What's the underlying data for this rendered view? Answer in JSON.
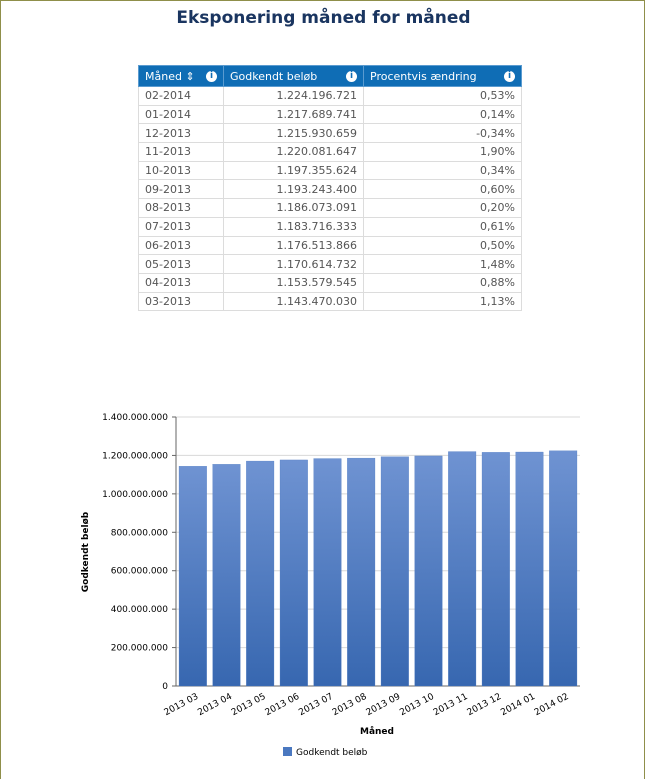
{
  "header": {
    "title": "Eksponering måned for måned"
  },
  "table": {
    "columns": [
      "Måned",
      "Godkendt beløb",
      "Procentvis ændring"
    ],
    "rows": [
      [
        "02-2014",
        "1.224.196.721",
        "0,53%"
      ],
      [
        "01-2014",
        "1.217.689.741",
        "0,14%"
      ],
      [
        "12-2013",
        "1.215.930.659",
        "-0,34%"
      ],
      [
        "11-2013",
        "1.220.081.647",
        "1,90%"
      ],
      [
        "10-2013",
        "1.197.355.624",
        "0,34%"
      ],
      [
        "09-2013",
        "1.193.243.400",
        "0,60%"
      ],
      [
        "08-2013",
        "1.186.073.091",
        "0,20%"
      ],
      [
        "07-2013",
        "1.183.716.333",
        "0,61%"
      ],
      [
        "06-2013",
        "1.176.513.866",
        "0,50%"
      ],
      [
        "05-2013",
        "1.170.614.732",
        "1,48%"
      ],
      [
        "04-2013",
        "1.153.579.545",
        "0,88%"
      ],
      [
        "03-2013",
        "1.143.470.030",
        "1,13%"
      ]
    ]
  },
  "chart_data": {
    "type": "bar",
    "x_label": "Måned",
    "y_label": "Godkendt beløb",
    "categories": [
      "2013 03",
      "2013 04",
      "2013 05",
      "2013 06",
      "2013 07",
      "2013 08",
      "2013 09",
      "2013 10",
      "2013 11",
      "2013 12",
      "2014 01",
      "2014 02"
    ],
    "series": [
      {
        "name": "Godkendt beløb",
        "color": "#4a78c0",
        "values": [
          1143470030,
          1153579545,
          1170614732,
          1176513866,
          1183716333,
          1186073091,
          1193243400,
          1197355624,
          1220081647,
          1215930659,
          1217689741,
          1224196721
        ]
      }
    ],
    "ylim": [
      0,
      1400000000
    ],
    "yticks": [
      0,
      {
        "value": 200000000,
        "label": "200.000.000"
      },
      {
        "value": 400000000,
        "label": "400.000.000"
      },
      {
        "value": 600000000,
        "label": "600.000.000"
      },
      {
        "value": 800000000,
        "label": "800.000.000"
      },
      {
        "value": 1000000000,
        "label": "1.000.000.000"
      },
      {
        "value": 1200000000,
        "label": "1.200.000.000"
      },
      {
        "value": 1400000000,
        "label": "1.400.000.000"
      }
    ],
    "grid": true,
    "legend": "bottom"
  }
}
